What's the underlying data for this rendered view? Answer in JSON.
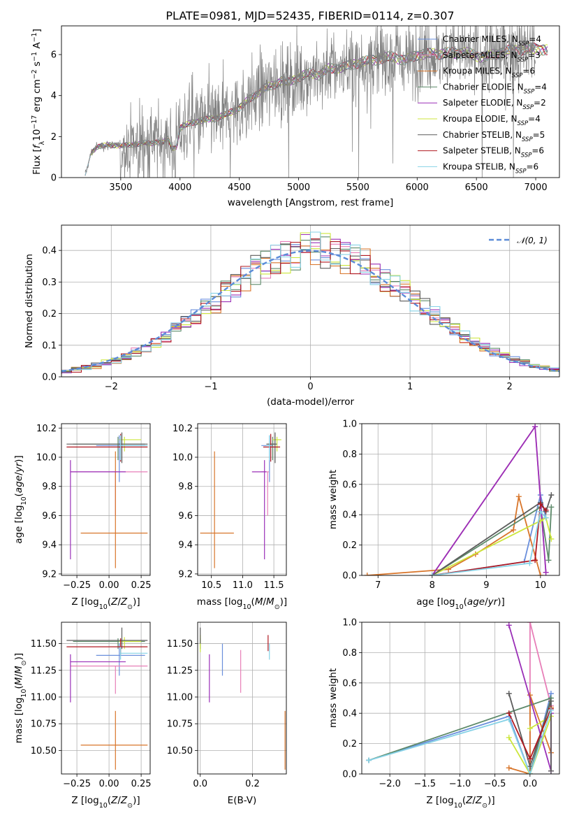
{
  "figure": {
    "title": "PLATE=0981, MJD=52435, FIBERID=0114, z=0.307"
  },
  "models": [
    {
      "label": "Chabrier MILES, N$_{SSP}$=4",
      "text": "Chabrier MILES, N",
      "n": 4,
      "color": "#6a8fdc"
    },
    {
      "label": "Salpeter MILES, N$_{SSP}$=3",
      "text": "Salpeter MILES, N",
      "n": 3,
      "color": "#e77fb8"
    },
    {
      "label": "Kroupa MILES, N$_{SSP}$=6",
      "text": "Kroupa MILES, N",
      "n": 6,
      "color": "#d8752a"
    },
    {
      "label": "Chabrier ELODIE, N$_{SSP}$=4",
      "text": "Chabrier ELODIE, N",
      "n": 4,
      "color": "#5d8a6a"
    },
    {
      "label": "Salpeter ELODIE, N$_{SSP}$=2",
      "text": "Salpeter ELODIE, N",
      "n": 2,
      "color": "#9a2fb7"
    },
    {
      "label": "Kroupa ELODIE, N$_{SSP}$=4",
      "text": "Kroupa ELODIE, N",
      "n": 4,
      "color": "#cce63c"
    },
    {
      "label": "Chabrier STELIB, N$_{SSP}$=5",
      "text": "Chabrier STELIB, N",
      "n": 5,
      "color": "#5c5c5c"
    },
    {
      "label": "Salpeter STELIB, N$_{SSP}$=6",
      "text": "Salpeter STELIB, N",
      "n": 6,
      "color": "#b01820"
    },
    {
      "label": "Kroupa STELIB, N$_{SSP}$=6",
      "text": "Kroupa STELIB, N",
      "n": 6,
      "color": "#86d2e6"
    }
  ],
  "chart_data": [
    {
      "id": "spectrum",
      "type": "line",
      "title": "PLATE=0981, MJD=52435, FIBERID=0114, z=0.307",
      "xlabel": "wavelength [Angstrom, rest frame]",
      "ylabel": "Flux [f_λ 10^-17 erg cm^-2 s^-1 A^-1]",
      "xlim": [
        3000,
        7200
      ],
      "ylim": [
        0,
        7.4
      ],
      "xticks": [
        3500,
        4000,
        4500,
        5000,
        5500,
        6000,
        6500,
        7000
      ],
      "yticks": [
        0,
        2,
        4,
        6
      ],
      "grid": false,
      "legend": "right",
      "data_color": "#808080",
      "continuum": {
        "x": [
          3200,
          3250,
          3300,
          3400,
          3500,
          3600,
          3700,
          3750,
          3800,
          3850,
          3900,
          3930,
          3970,
          4000,
          4100,
          4200,
          4300,
          4400,
          4500,
          4600,
          4700,
          4800,
          4860,
          4900,
          5000,
          5100,
          5175,
          5250,
          5400,
          5500,
          5600,
          5700,
          5800,
          5895,
          6000,
          6200,
          6400,
          6563,
          6700,
          6800,
          7000,
          7100
        ],
        "y": [
          0.1,
          1.2,
          1.5,
          1.6,
          1.55,
          1.6,
          1.7,
          1.65,
          1.75,
          1.7,
          1.9,
          1.4,
          1.5,
          2.4,
          2.7,
          2.8,
          2.9,
          3.1,
          3.4,
          3.9,
          4.3,
          4.55,
          4.75,
          4.6,
          4.9,
          5.1,
          5.0,
          5.3,
          5.4,
          5.6,
          5.7,
          5.8,
          5.9,
          5.7,
          6.0,
          6.05,
          6.1,
          5.85,
          6.1,
          6.2,
          6.3,
          6.2
        ]
      },
      "noise_onset_x": 3500,
      "data_end_x": 7000
    },
    {
      "id": "residual_hist",
      "type": "line",
      "xlabel": "(data-model)/error",
      "ylabel": "Normed distribution",
      "xlim": [
        -2.5,
        2.5
      ],
      "ylim": [
        0,
        0.48
      ],
      "xticks": [
        -2,
        -1,
        0,
        1,
        2
      ],
      "yticks": [
        0.0,
        0.1,
        0.2,
        0.3,
        0.4
      ],
      "grid": true,
      "legend": "top-right",
      "bin_width": 0.1,
      "gaussian_label": "𝒩(0, 1)",
      "gaussian_color": "#5b8bd8"
    },
    {
      "id": "age_vs_Z",
      "type": "scatter",
      "xlabel": "Z [log10(Z/Z⊙)]",
      "ylabel": "age [log10(age/yr)]",
      "xlim": [
        -0.37,
        0.32
      ],
      "ylim": [
        9.19,
        10.23
      ],
      "xticks": [
        -0.25,
        0.0,
        0.25
      ],
      "yticks": [
        9.2,
        9.4,
        9.6,
        9.8,
        10.0,
        10.2
      ],
      "grid": true,
      "points": [
        {
          "model": 0,
          "x": 0.08,
          "y": 10.08,
          "xlo": -0.1,
          "xhi": 0.28,
          "ylo": 9.83,
          "yhi": 10.15
        },
        {
          "model": 1,
          "x": 0.05,
          "y": 9.9,
          "xlo": -0.3,
          "xhi": 0.3,
          "ylo": 9.6,
          "yhi": 9.9
        },
        {
          "model": 2,
          "x": 0.05,
          "y": 9.48,
          "xlo": -0.22,
          "xhi": 0.3,
          "ylo": 9.24,
          "yhi": 10.04
        },
        {
          "model": 3,
          "x": 0.07,
          "y": 10.09,
          "xlo": -0.28,
          "xhi": 0.28,
          "ylo": 9.98,
          "yhi": 10.14
        },
        {
          "model": 4,
          "x": -0.3,
          "y": 9.9,
          "xlo": -0.3,
          "xhi": 0.13,
          "ylo": 9.3,
          "yhi": 9.98
        },
        {
          "model": 5,
          "x": 0.12,
          "y": 10.12,
          "xlo": 0.08,
          "xhi": 0.25,
          "ylo": 10.04,
          "yhi": 10.14
        },
        {
          "model": 6,
          "x": 0.1,
          "y": 10.09,
          "xlo": -0.33,
          "xhi": 0.3,
          "ylo": 9.96,
          "yhi": 10.17
        },
        {
          "model": 7,
          "x": 0.09,
          "y": 10.07,
          "xlo": -0.33,
          "xhi": 0.3,
          "ylo": 9.97,
          "yhi": 10.16
        },
        {
          "model": 8,
          "x": 0.09,
          "y": 10.08,
          "xlo": 0.08,
          "xhi": 0.3,
          "ylo": 9.98,
          "yhi": 10.15
        }
      ]
    },
    {
      "id": "age_vs_mass",
      "type": "scatter",
      "xlabel": "mass [log10(M/M⊙)]",
      "ylabel": "",
      "xlim": [
        10.28,
        11.7
      ],
      "ylim": [
        9.19,
        10.23
      ],
      "xticks": [
        10.5,
        11.0,
        11.5
      ],
      "yticks": [
        9.2,
        9.4,
        9.6,
        9.8,
        10.0,
        10.2
      ],
      "grid": true,
      "points": [
        {
          "model": 0,
          "x": 11.43,
          "y": 10.08,
          "xlo": 11.3,
          "xhi": 11.48,
          "ylo": 9.83,
          "yhi": 10.15
        },
        {
          "model": 1,
          "x": 11.4,
          "y": 9.9,
          "xlo": 11.3,
          "xhi": 11.42,
          "ylo": 9.6,
          "yhi": 9.9
        },
        {
          "model": 2,
          "x": 10.55,
          "y": 9.48,
          "xlo": 10.32,
          "xhi": 10.86,
          "ylo": 9.24,
          "yhi": 10.04
        },
        {
          "model": 3,
          "x": 11.48,
          "y": 10.09,
          "xlo": 11.4,
          "xhi": 11.53,
          "ylo": 9.98,
          "yhi": 10.14
        },
        {
          "model": 4,
          "x": 11.35,
          "y": 9.9,
          "xlo": 11.15,
          "xhi": 11.38,
          "ylo": 9.3,
          "yhi": 9.98
        },
        {
          "model": 5,
          "x": 11.55,
          "y": 10.12,
          "xlo": 11.48,
          "xhi": 11.62,
          "ylo": 10.04,
          "yhi": 10.14
        },
        {
          "model": 6,
          "x": 11.52,
          "y": 10.09,
          "xlo": 11.38,
          "xhi": 11.55,
          "ylo": 9.96,
          "yhi": 10.17
        },
        {
          "model": 7,
          "x": 11.45,
          "y": 10.07,
          "xlo": 11.33,
          "xhi": 11.6,
          "ylo": 9.97,
          "yhi": 10.16
        },
        {
          "model": 8,
          "x": 11.43,
          "y": 10.08,
          "xlo": 11.38,
          "xhi": 11.46,
          "ylo": 9.98,
          "yhi": 10.15
        }
      ]
    },
    {
      "id": "weight_vs_age",
      "type": "line",
      "xlabel": "age [log10(age/yr)]",
      "ylabel": "mass weight",
      "xlim": [
        6.7,
        10.35
      ],
      "ylim": [
        0,
        1.0
      ],
      "xticks": [
        7,
        8,
        9,
        10
      ],
      "yticks": [
        0.0,
        0.2,
        0.4,
        0.6,
        0.8,
        1.0
      ],
      "grid": true,
      "series": [
        {
          "model": 0,
          "x": [
            8.0,
            9.7,
            10.0,
            10.1
          ],
          "y": [
            0.0,
            0.09,
            0.53,
            0.38
          ]
        },
        {
          "model": 1,
          "x": [
            8.0,
            9.9,
            10.1
          ],
          "y": [
            0.0,
            0.98,
            0.02
          ]
        },
        {
          "model": 2,
          "x": [
            6.8,
            8.3,
            8.8,
            9.5,
            9.6,
            10.0
          ],
          "y": [
            0.0,
            0.04,
            0.14,
            0.3,
            0.52,
            0.0
          ]
        },
        {
          "model": 3,
          "x": [
            8.0,
            10.0,
            10.15,
            10.2
          ],
          "y": [
            0.0,
            0.45,
            0.1,
            0.45
          ]
        },
        {
          "model": 4,
          "x": [
            8.0,
            9.9,
            10.1
          ],
          "y": [
            0.0,
            0.98,
            0.02
          ]
        },
        {
          "model": 5,
          "x": [
            8.0,
            10.0,
            10.1,
            10.2
          ],
          "y": [
            0.0,
            0.36,
            0.38,
            0.24
          ]
        },
        {
          "model": 6,
          "x": [
            8.0,
            10.0,
            10.1,
            10.2
          ],
          "y": [
            0.0,
            0.48,
            0.42,
            0.53
          ]
        },
        {
          "model": 7,
          "x": [
            8.0,
            9.9,
            10.0,
            10.1
          ],
          "y": [
            0.0,
            0.1,
            0.47,
            0.43
          ]
        },
        {
          "model": 8,
          "x": [
            8.0,
            9.8,
            10.0,
            10.1
          ],
          "y": [
            0.0,
            0.08,
            0.42,
            0.38
          ]
        }
      ]
    },
    {
      "id": "mass_vs_Z",
      "type": "scatter",
      "xlabel": "Z [log10(Z/Z⊙)]",
      "ylabel": "mass [log10(M/M⊙)]",
      "xlim": [
        -0.37,
        0.32
      ],
      "ylim": [
        10.28,
        11.7
      ],
      "xticks": [
        -0.25,
        0.0,
        0.25
      ],
      "yticks": [
        10.5,
        10.75,
        11.0,
        11.25,
        11.5
      ],
      "grid": true,
      "points": [
        {
          "model": 0,
          "x": 0.08,
          "y": 11.39,
          "xlo": -0.1,
          "xhi": 0.28,
          "ylo": 11.2,
          "yhi": 11.5
        },
        {
          "model": 1,
          "x": 0.05,
          "y": 11.29,
          "xlo": -0.3,
          "xhi": 0.3,
          "ylo": 11.03,
          "yhi": 11.29
        },
        {
          "model": 2,
          "x": 0.05,
          "y": 10.55,
          "xlo": -0.22,
          "xhi": 0.3,
          "ylo": 10.32,
          "yhi": 10.87
        },
        {
          "model": 3,
          "x": 0.07,
          "y": 11.52,
          "xlo": -0.28,
          "xhi": 0.28,
          "ylo": 11.45,
          "yhi": 11.55
        },
        {
          "model": 4,
          "x": -0.3,
          "y": 11.33,
          "xlo": -0.3,
          "xhi": 0.13,
          "ylo": 10.95,
          "yhi": 11.4
        },
        {
          "model": 5,
          "x": 0.12,
          "y": 11.52,
          "xlo": 0.08,
          "xhi": 0.25,
          "ylo": 11.45,
          "yhi": 11.56
        },
        {
          "model": 6,
          "x": 0.1,
          "y": 11.53,
          "xlo": -0.33,
          "xhi": 0.3,
          "ylo": 11.45,
          "yhi": 11.65
        },
        {
          "model": 7,
          "x": 0.09,
          "y": 11.47,
          "xlo": -0.33,
          "xhi": 0.3,
          "ylo": 11.4,
          "yhi": 11.55
        },
        {
          "model": 8,
          "x": 0.09,
          "y": 11.41,
          "xlo": 0.08,
          "xhi": 0.3,
          "ylo": 11.35,
          "yhi": 11.47
        }
      ]
    },
    {
      "id": "mass_vs_ebv",
      "type": "scatter",
      "xlabel": "E(B-V)",
      "ylabel": "",
      "xlim": [
        -0.01,
        0.33
      ],
      "ylim": [
        10.28,
        11.7
      ],
      "xticks": [
        0.0,
        0.2
      ],
      "yticks": [
        10.5,
        10.75,
        11.0,
        11.25,
        11.5
      ],
      "grid": true,
      "points": [
        {
          "model": 0,
          "x": 0.085,
          "y": 11.35,
          "ylo": 11.2,
          "yhi": 11.5
        },
        {
          "model": 1,
          "x": 0.155,
          "y": 11.25,
          "ylo": 11.04,
          "yhi": 11.44
        },
        {
          "model": 2,
          "x": 0.325,
          "y": 10.6,
          "ylo": 10.32,
          "yhi": 10.87
        },
        {
          "model": 3,
          "x": 0.0,
          "y": 11.5,
          "ylo": 11.45,
          "yhi": 11.55
        },
        {
          "model": 4,
          "x": 0.035,
          "y": 11.2,
          "ylo": 10.95,
          "yhi": 11.4
        },
        {
          "model": 5,
          "x": 0.0,
          "y": 11.5,
          "ylo": 11.42,
          "yhi": 11.58
        },
        {
          "model": 6,
          "x": 0.0,
          "y": 11.58,
          "ylo": 11.5,
          "yhi": 11.65
        },
        {
          "model": 7,
          "x": 0.26,
          "y": 11.5,
          "ylo": 11.43,
          "yhi": 11.58
        },
        {
          "model": 8,
          "x": 0.265,
          "y": 11.43,
          "ylo": 11.35,
          "yhi": 11.5
        }
      ]
    },
    {
      "id": "weight_vs_Z",
      "type": "line",
      "xlabel": "Z [log10(Z/Z⊙)]",
      "ylabel": "mass weight",
      "xlim": [
        -2.4,
        0.42
      ],
      "ylim": [
        0,
        1.0
      ],
      "xticks": [
        -2.0,
        -1.5,
        -1.0,
        -0.5,
        0.0
      ],
      "yticks": [
        0.0,
        0.2,
        0.4,
        0.6,
        0.8,
        1.0
      ],
      "grid": true,
      "series": [
        {
          "model": 0,
          "x": [
            -2.3,
            -0.3,
            0.0,
            0.3
          ],
          "y": [
            0.09,
            0.38,
            0.0,
            0.53
          ]
        },
        {
          "model": 1,
          "x": [
            0.0,
            0.0,
            0.3
          ],
          "y": [
            0.0,
            1.0,
            0.45
          ]
        },
        {
          "model": 2,
          "x": [
            -0.3,
            0.0,
            0.0,
            0.3,
            0.3
          ],
          "y": [
            0.04,
            0.0,
            0.52,
            0.14,
            0.44
          ]
        },
        {
          "model": 3,
          "x": [
            -2.3,
            0.3,
            0.0
          ],
          "y": [
            0.09,
            0.5,
            0.0
          ]
        },
        {
          "model": 4,
          "x": [
            -0.3,
            0.3,
            0.3
          ],
          "y": [
            0.98,
            0.02,
            0.4
          ]
        },
        {
          "model": 5,
          "x": [
            -0.3,
            0.0,
            0.3,
            0.0
          ],
          "y": [
            0.24,
            0.0,
            0.38,
            0.3
          ]
        },
        {
          "model": 6,
          "x": [
            -0.3,
            0.0,
            0.3,
            0.3
          ],
          "y": [
            0.53,
            0.05,
            0.48,
            0.02
          ]
        },
        {
          "model": 7,
          "x": [
            -0.3,
            0.0,
            0.3
          ],
          "y": [
            0.4,
            0.1,
            0.43
          ]
        },
        {
          "model": 8,
          "x": [
            -2.3,
            -0.3,
            0.0,
            0.3
          ],
          "y": [
            0.09,
            0.36,
            0.0,
            0.42
          ]
        }
      ]
    }
  ]
}
